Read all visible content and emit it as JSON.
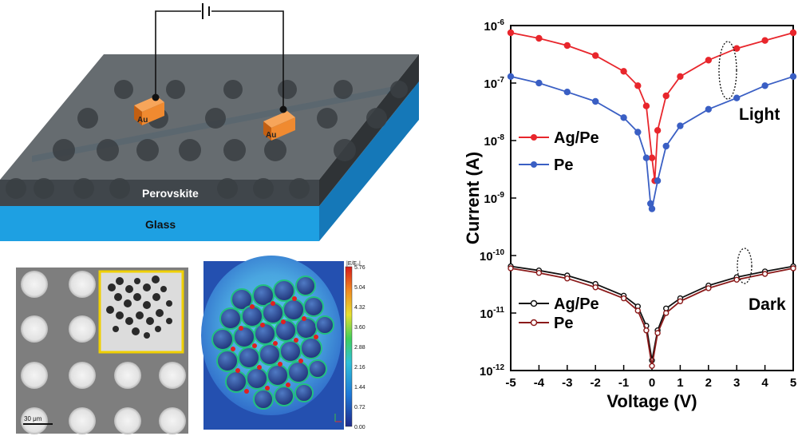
{
  "device": {
    "electrode_left": "Au",
    "electrode_right": "Au",
    "layer_top": "Perovskite",
    "layer_bottom": "Glass"
  },
  "sem": {
    "scale_bar": "30 μm"
  },
  "field_map": {
    "colorbar_title": "|E/E₀|",
    "colorbar_ticks": [
      "5.76",
      "5.04",
      "4.32",
      "3.60",
      "2.88",
      "2.16",
      "1.44",
      "0.72",
      "0.00"
    ]
  },
  "chart_data": {
    "type": "line",
    "xlabel": "Voltage (V)",
    "ylabel": "Current (A)",
    "xlim": [
      -5,
      5
    ],
    "ylim": [
      1e-12,
      1e-06
    ],
    "yscale": "log",
    "xticks": [
      "-5",
      "-4",
      "-3",
      "-2",
      "-1",
      "0",
      "1",
      "2",
      "3",
      "4",
      "5"
    ],
    "yticks": [
      {
        "base": "10",
        "exp": "-12"
      },
      {
        "base": "10",
        "exp": "-11"
      },
      {
        "base": "10",
        "exp": "-10"
      },
      {
        "base": "10",
        "exp": "-9"
      },
      {
        "base": "10",
        "exp": "-8"
      },
      {
        "base": "10",
        "exp": "-7"
      },
      {
        "base": "10",
        "exp": "-6"
      }
    ],
    "annotations": [
      "Light",
      "Dark"
    ],
    "series": [
      {
        "name": "Ag/Pe",
        "condition": "Light",
        "color": "#e8262c",
        "marker": "filled-circle",
        "x": [
          -5,
          -4,
          -3,
          -2,
          -1,
          -0.5,
          -0.2,
          0,
          0.1,
          0.2,
          0.5,
          1,
          2,
          3,
          4,
          5
        ],
        "y": [
          7.5e-07,
          6e-07,
          4.5e-07,
          3e-07,
          1.6e-07,
          9e-08,
          4e-08,
          5e-09,
          2e-09,
          1.5e-08,
          6e-08,
          1.3e-07,
          2.5e-07,
          4e-07,
          5.5e-07,
          7.5e-07
        ]
      },
      {
        "name": "Pe",
        "condition": "Light",
        "color": "#3a5fc4",
        "marker": "filled-circle",
        "x": [
          -5,
          -4,
          -3,
          -2,
          -1,
          -0.5,
          -0.2,
          -0.05,
          0,
          0.2,
          0.5,
          1,
          2,
          3,
          4,
          5
        ],
        "y": [
          1.3e-07,
          1e-07,
          7e-08,
          4.8e-08,
          2.5e-08,
          1.4e-08,
          5e-09,
          8e-10,
          6.5e-10,
          2e-09,
          8e-09,
          1.8e-08,
          3.5e-08,
          5.5e-08,
          9e-08,
          1.3e-07
        ]
      },
      {
        "name": "Ag/Pe",
        "condition": "Dark",
        "color": "#111111",
        "marker": "open-circle",
        "x": [
          -5,
          -4,
          -3,
          -2,
          -1,
          -0.5,
          -0.2,
          0,
          0.2,
          0.5,
          1,
          2,
          3,
          4,
          5
        ],
        "y": [
          6.5e-11,
          5.5e-11,
          4.5e-11,
          3.2e-11,
          2e-11,
          1.3e-11,
          6e-12,
          1.5e-12,
          5e-12,
          1.2e-11,
          1.8e-11,
          3e-11,
          4.2e-11,
          5.3e-11,
          6.5e-11
        ]
      },
      {
        "name": "Pe",
        "condition": "Dark",
        "color": "#8b1a1a",
        "marker": "open-circle",
        "x": [
          -5,
          -4,
          -3,
          -2,
          -1,
          -0.5,
          -0.2,
          0,
          0.2,
          0.5,
          1,
          2,
          3,
          4,
          5
        ],
        "y": [
          6e-11,
          5e-11,
          4e-11,
          2.8e-11,
          1.8e-11,
          1.1e-11,
          5e-12,
          1.2e-12,
          4.5e-12,
          1e-11,
          1.6e-11,
          2.7e-11,
          3.8e-11,
          4.8e-11,
          6e-11
        ]
      }
    ]
  }
}
